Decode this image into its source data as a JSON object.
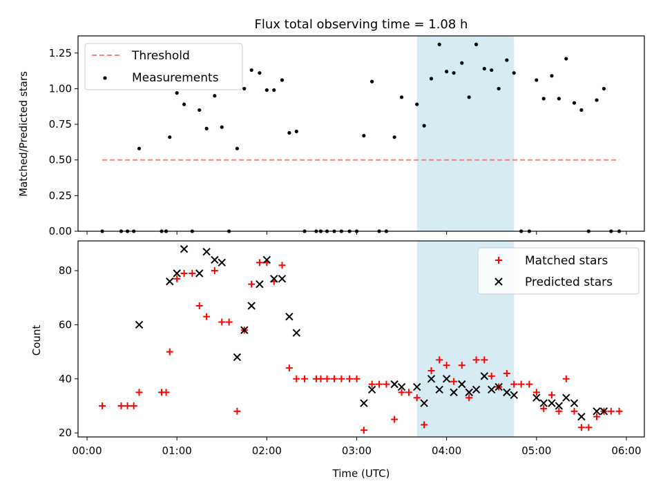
{
  "chart_data": [
    {
      "type": "scatter",
      "title": "Flux total observing time = 1.08 h",
      "xlabel": "",
      "ylabel": "Matched/Predicted stars",
      "xlim": [
        -0.1,
        6.2
      ],
      "ylim": [
        0,
        1.37
      ],
      "yticks": [
        "0.00",
        "0.25",
        "0.50",
        "0.75",
        "1.00",
        "1.25"
      ],
      "highlight_span": [
        3.67,
        4.75
      ],
      "threshold": {
        "name": "Threshold",
        "value": 0.5,
        "x": [
          0.17,
          5.92
        ],
        "color": "#ff7f7f"
      },
      "series": [
        {
          "name": "Measurements",
          "color": "#000000",
          "points": [
            [
              0.17,
              0.0
            ],
            [
              0.38,
              0.0
            ],
            [
              0.45,
              0.0
            ],
            [
              0.52,
              0.0
            ],
            [
              0.58,
              0.58
            ],
            [
              0.83,
              0.0
            ],
            [
              0.88,
              0.0
            ],
            [
              0.92,
              0.66
            ],
            [
              1.0,
              0.97
            ],
            [
              1.08,
              0.89
            ],
            [
              1.17,
              0.0
            ],
            [
              1.25,
              0.85
            ],
            [
              1.33,
              0.72
            ],
            [
              1.42,
              0.95
            ],
            [
              1.5,
              0.73
            ],
            [
              1.58,
              0.0
            ],
            [
              1.67,
              0.58
            ],
            [
              1.75,
              1.0
            ],
            [
              1.83,
              1.13
            ],
            [
              1.92,
              1.11
            ],
            [
              2.0,
              0.99
            ],
            [
              2.08,
              0.99
            ],
            [
              2.17,
              1.06
            ],
            [
              2.25,
              0.69
            ],
            [
              2.33,
              0.7
            ],
            [
              2.42,
              0.0
            ],
            [
              2.55,
              0.0
            ],
            [
              2.6,
              0.0
            ],
            [
              2.67,
              0.0
            ],
            [
              2.75,
              0.0
            ],
            [
              2.83,
              0.0
            ],
            [
              2.92,
              0.0
            ],
            [
              3.0,
              0.0
            ],
            [
              3.08,
              0.67
            ],
            [
              3.17,
              1.05
            ],
            [
              3.25,
              0.0
            ],
            [
              3.33,
              0.0
            ],
            [
              3.42,
              0.66
            ],
            [
              3.5,
              0.94
            ],
            [
              3.67,
              0.89
            ],
            [
              3.75,
              0.74
            ],
            [
              3.83,
              1.07
            ],
            [
              3.92,
              1.31
            ],
            [
              4.0,
              1.12
            ],
            [
              4.08,
              1.11
            ],
            [
              4.17,
              1.18
            ],
            [
              4.25,
              0.94
            ],
            [
              4.33,
              1.31
            ],
            [
              4.42,
              1.14
            ],
            [
              4.5,
              1.13
            ],
            [
              4.58,
              1.0
            ],
            [
              4.67,
              1.2
            ],
            [
              4.75,
              1.11
            ],
            [
              4.83,
              0.0
            ],
            [
              4.92,
              0.0
            ],
            [
              5.0,
              1.06
            ],
            [
              5.08,
              0.93
            ],
            [
              5.17,
              1.09
            ],
            [
              5.25,
              0.93
            ],
            [
              5.33,
              1.21
            ],
            [
              5.42,
              0.9
            ],
            [
              5.5,
              0.85
            ],
            [
              5.58,
              0.0
            ],
            [
              5.67,
              0.92
            ],
            [
              5.75,
              1.0
            ],
            [
              5.83,
              0.0
            ],
            [
              5.92,
              0.0
            ]
          ]
        }
      ],
      "legend": {
        "position": "upper left",
        "entries": [
          "Threshold",
          "Measurements"
        ]
      }
    },
    {
      "type": "scatter",
      "title": "",
      "xlabel": "Time (UTC)",
      "ylabel": "Count",
      "xlim": [
        -0.1,
        6.2
      ],
      "ylim": [
        18.5,
        91
      ],
      "yticks": [
        "20",
        "40",
        "60",
        "80"
      ],
      "xticks": [
        "00:00",
        "01:00",
        "02:00",
        "03:00",
        "04:00",
        "05:00",
        "06:00"
      ],
      "highlight_span": [
        3.67,
        4.75
      ],
      "series": [
        {
          "name": "Matched stars",
          "marker": "plus",
          "color": "#ff0000",
          "points": [
            [
              0.17,
              30
            ],
            [
              0.38,
              30
            ],
            [
              0.45,
              30
            ],
            [
              0.52,
              30
            ],
            [
              0.58,
              35
            ],
            [
              0.83,
              35
            ],
            [
              0.88,
              35
            ],
            [
              0.92,
              50
            ],
            [
              1.0,
              77
            ],
            [
              1.08,
              79
            ],
            [
              1.17,
              79
            ],
            [
              1.25,
              67
            ],
            [
              1.33,
              63
            ],
            [
              1.42,
              80
            ],
            [
              1.5,
              61
            ],
            [
              1.58,
              61
            ],
            [
              1.67,
              28
            ],
            [
              1.75,
              58
            ],
            [
              1.83,
              75
            ],
            [
              1.92,
              83
            ],
            [
              2.0,
              83
            ],
            [
              2.08,
              76
            ],
            [
              2.17,
              82
            ],
            [
              2.25,
              44
            ],
            [
              2.33,
              40
            ],
            [
              2.42,
              40
            ],
            [
              2.55,
              40
            ],
            [
              2.6,
              40
            ],
            [
              2.67,
              40
            ],
            [
              2.75,
              40
            ],
            [
              2.83,
              40
            ],
            [
              2.92,
              40
            ],
            [
              3.0,
              40
            ],
            [
              3.08,
              21
            ],
            [
              3.17,
              38
            ],
            [
              3.25,
              38
            ],
            [
              3.33,
              38
            ],
            [
              3.42,
              25
            ],
            [
              3.5,
              35
            ],
            [
              3.58,
              35
            ],
            [
              3.67,
              33
            ],
            [
              3.75,
              23
            ],
            [
              3.83,
              43
            ],
            [
              3.92,
              47
            ],
            [
              4.0,
              45
            ],
            [
              4.08,
              39
            ],
            [
              4.17,
              45
            ],
            [
              4.25,
              33
            ],
            [
              4.33,
              47
            ],
            [
              4.42,
              47
            ],
            [
              4.5,
              41
            ],
            [
              4.58,
              37
            ],
            [
              4.67,
              42
            ],
            [
              4.75,
              38
            ],
            [
              4.83,
              38
            ],
            [
              4.92,
              38
            ],
            [
              5.0,
              35
            ],
            [
              5.08,
              29
            ],
            [
              5.17,
              34
            ],
            [
              5.25,
              28
            ],
            [
              5.33,
              40
            ],
            [
              5.42,
              28
            ],
            [
              5.5,
              22
            ],
            [
              5.58,
              22
            ],
            [
              5.67,
              26
            ],
            [
              5.75,
              28
            ],
            [
              5.83,
              28
            ],
            [
              5.92,
              28
            ]
          ]
        },
        {
          "name": "Predicted stars",
          "marker": "x",
          "color": "#000000",
          "points": [
            [
              0.58,
              60
            ],
            [
              0.92,
              76
            ],
            [
              1.0,
              79
            ],
            [
              1.08,
              88
            ],
            [
              1.25,
              79
            ],
            [
              1.33,
              87
            ],
            [
              1.42,
              84
            ],
            [
              1.5,
              83
            ],
            [
              1.67,
              48
            ],
            [
              1.75,
              58
            ],
            [
              1.83,
              67
            ],
            [
              1.92,
              75
            ],
            [
              2.0,
              84
            ],
            [
              2.08,
              77
            ],
            [
              2.17,
              77
            ],
            [
              2.25,
              63
            ],
            [
              2.33,
              57
            ],
            [
              3.08,
              31
            ],
            [
              3.17,
              36
            ],
            [
              3.42,
              38
            ],
            [
              3.5,
              37
            ],
            [
              3.67,
              37
            ],
            [
              3.75,
              31
            ],
            [
              3.83,
              40
            ],
            [
              3.92,
              36
            ],
            [
              4.0,
              40
            ],
            [
              4.08,
              35
            ],
            [
              4.17,
              38
            ],
            [
              4.25,
              35
            ],
            [
              4.33,
              36
            ],
            [
              4.42,
              41
            ],
            [
              4.5,
              36
            ],
            [
              4.58,
              37
            ],
            [
              4.67,
              35
            ],
            [
              4.75,
              34
            ],
            [
              5.0,
              33
            ],
            [
              5.08,
              31
            ],
            [
              5.17,
              31
            ],
            [
              5.25,
              30
            ],
            [
              5.33,
              33
            ],
            [
              5.42,
              31
            ],
            [
              5.5,
              26
            ],
            [
              5.67,
              28
            ],
            [
              5.75,
              28
            ]
          ]
        }
      ],
      "legend": {
        "position": "upper right",
        "entries": [
          "Matched stars",
          "Predicted stars"
        ]
      }
    }
  ],
  "colors": {
    "span": "#add8e6",
    "axis": "#000000"
  }
}
